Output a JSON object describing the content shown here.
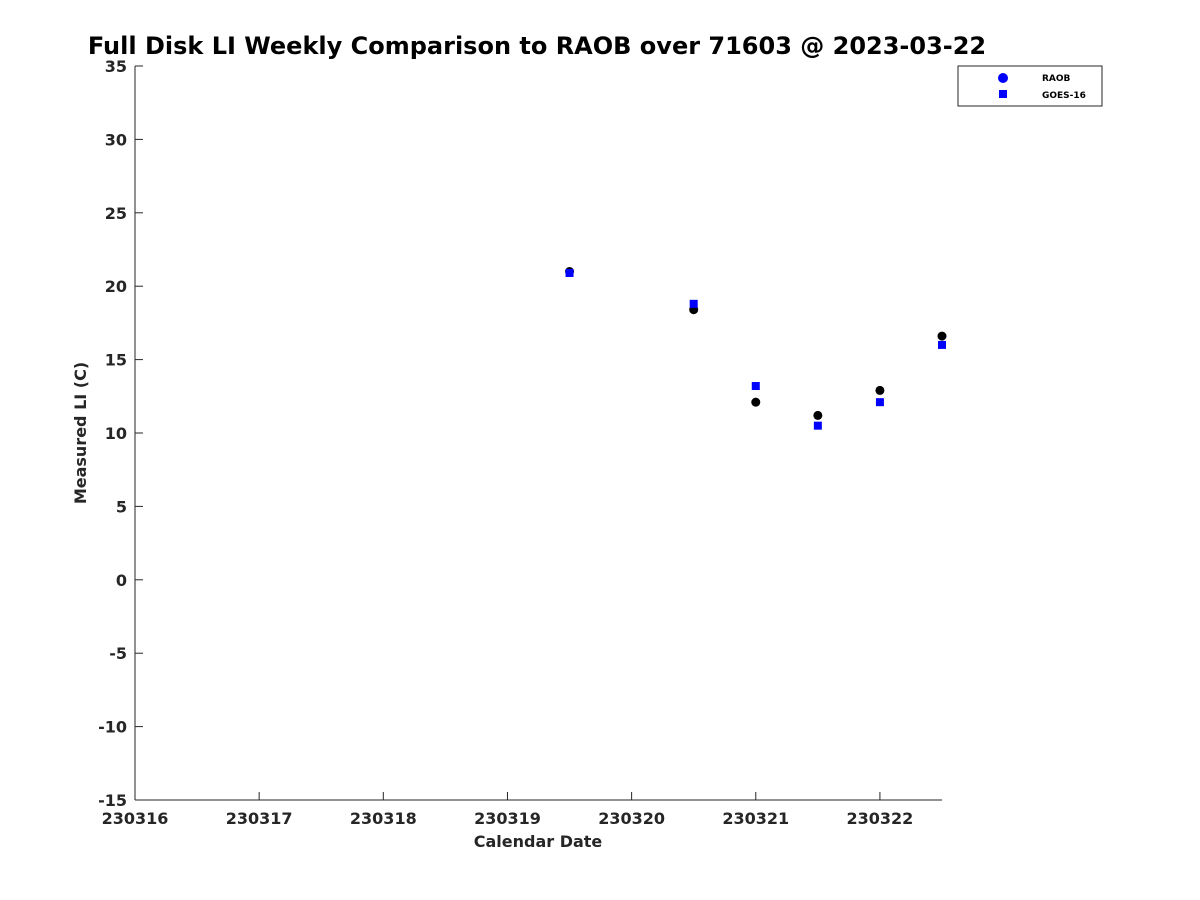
{
  "chart_data": {
    "type": "scatter",
    "title": "Full Disk LI Weekly Comparison to RAOB over 71603 @ 2023-03-22",
    "xlabel": "Calendar Date",
    "ylabel": "Measured LI (C)",
    "xlim": [
      230316,
      230322.5
    ],
    "ylim": [
      -15,
      35
    ],
    "xticks": [
      230316,
      230317,
      230318,
      230319,
      230320,
      230321,
      230322
    ],
    "xtick_labels": [
      "230316",
      "230317",
      "230318",
      "230319",
      "230320",
      "230321",
      "230322"
    ],
    "yticks": [
      35,
      30,
      25,
      20,
      15,
      10,
      5,
      0,
      -5,
      -10,
      -15
    ],
    "ytick_labels": [
      "35",
      "30",
      "25",
      "20",
      "15",
      "10",
      "5",
      "0",
      "-5",
      "-10",
      "-15"
    ],
    "grid": false,
    "legend_position": "top-right",
    "series": [
      {
        "name": "RAOB",
        "marker": "circle",
        "legend_color": "#0000ff",
        "color": "#000000",
        "x": [
          230319.5,
          230320.5,
          230321,
          230321.5,
          230322,
          230322.5
        ],
        "y": [
          21.0,
          18.4,
          12.1,
          11.2,
          12.9,
          16.6
        ]
      },
      {
        "name": "GOES-16",
        "marker": "square",
        "legend_color": "#0000ff",
        "color": "#0000ff",
        "x": [
          230319.5,
          230320.5,
          230321,
          230321.5,
          230322,
          230322.5
        ],
        "y": [
          20.9,
          18.8,
          13.2,
          10.5,
          12.1,
          16.0
        ]
      }
    ]
  }
}
